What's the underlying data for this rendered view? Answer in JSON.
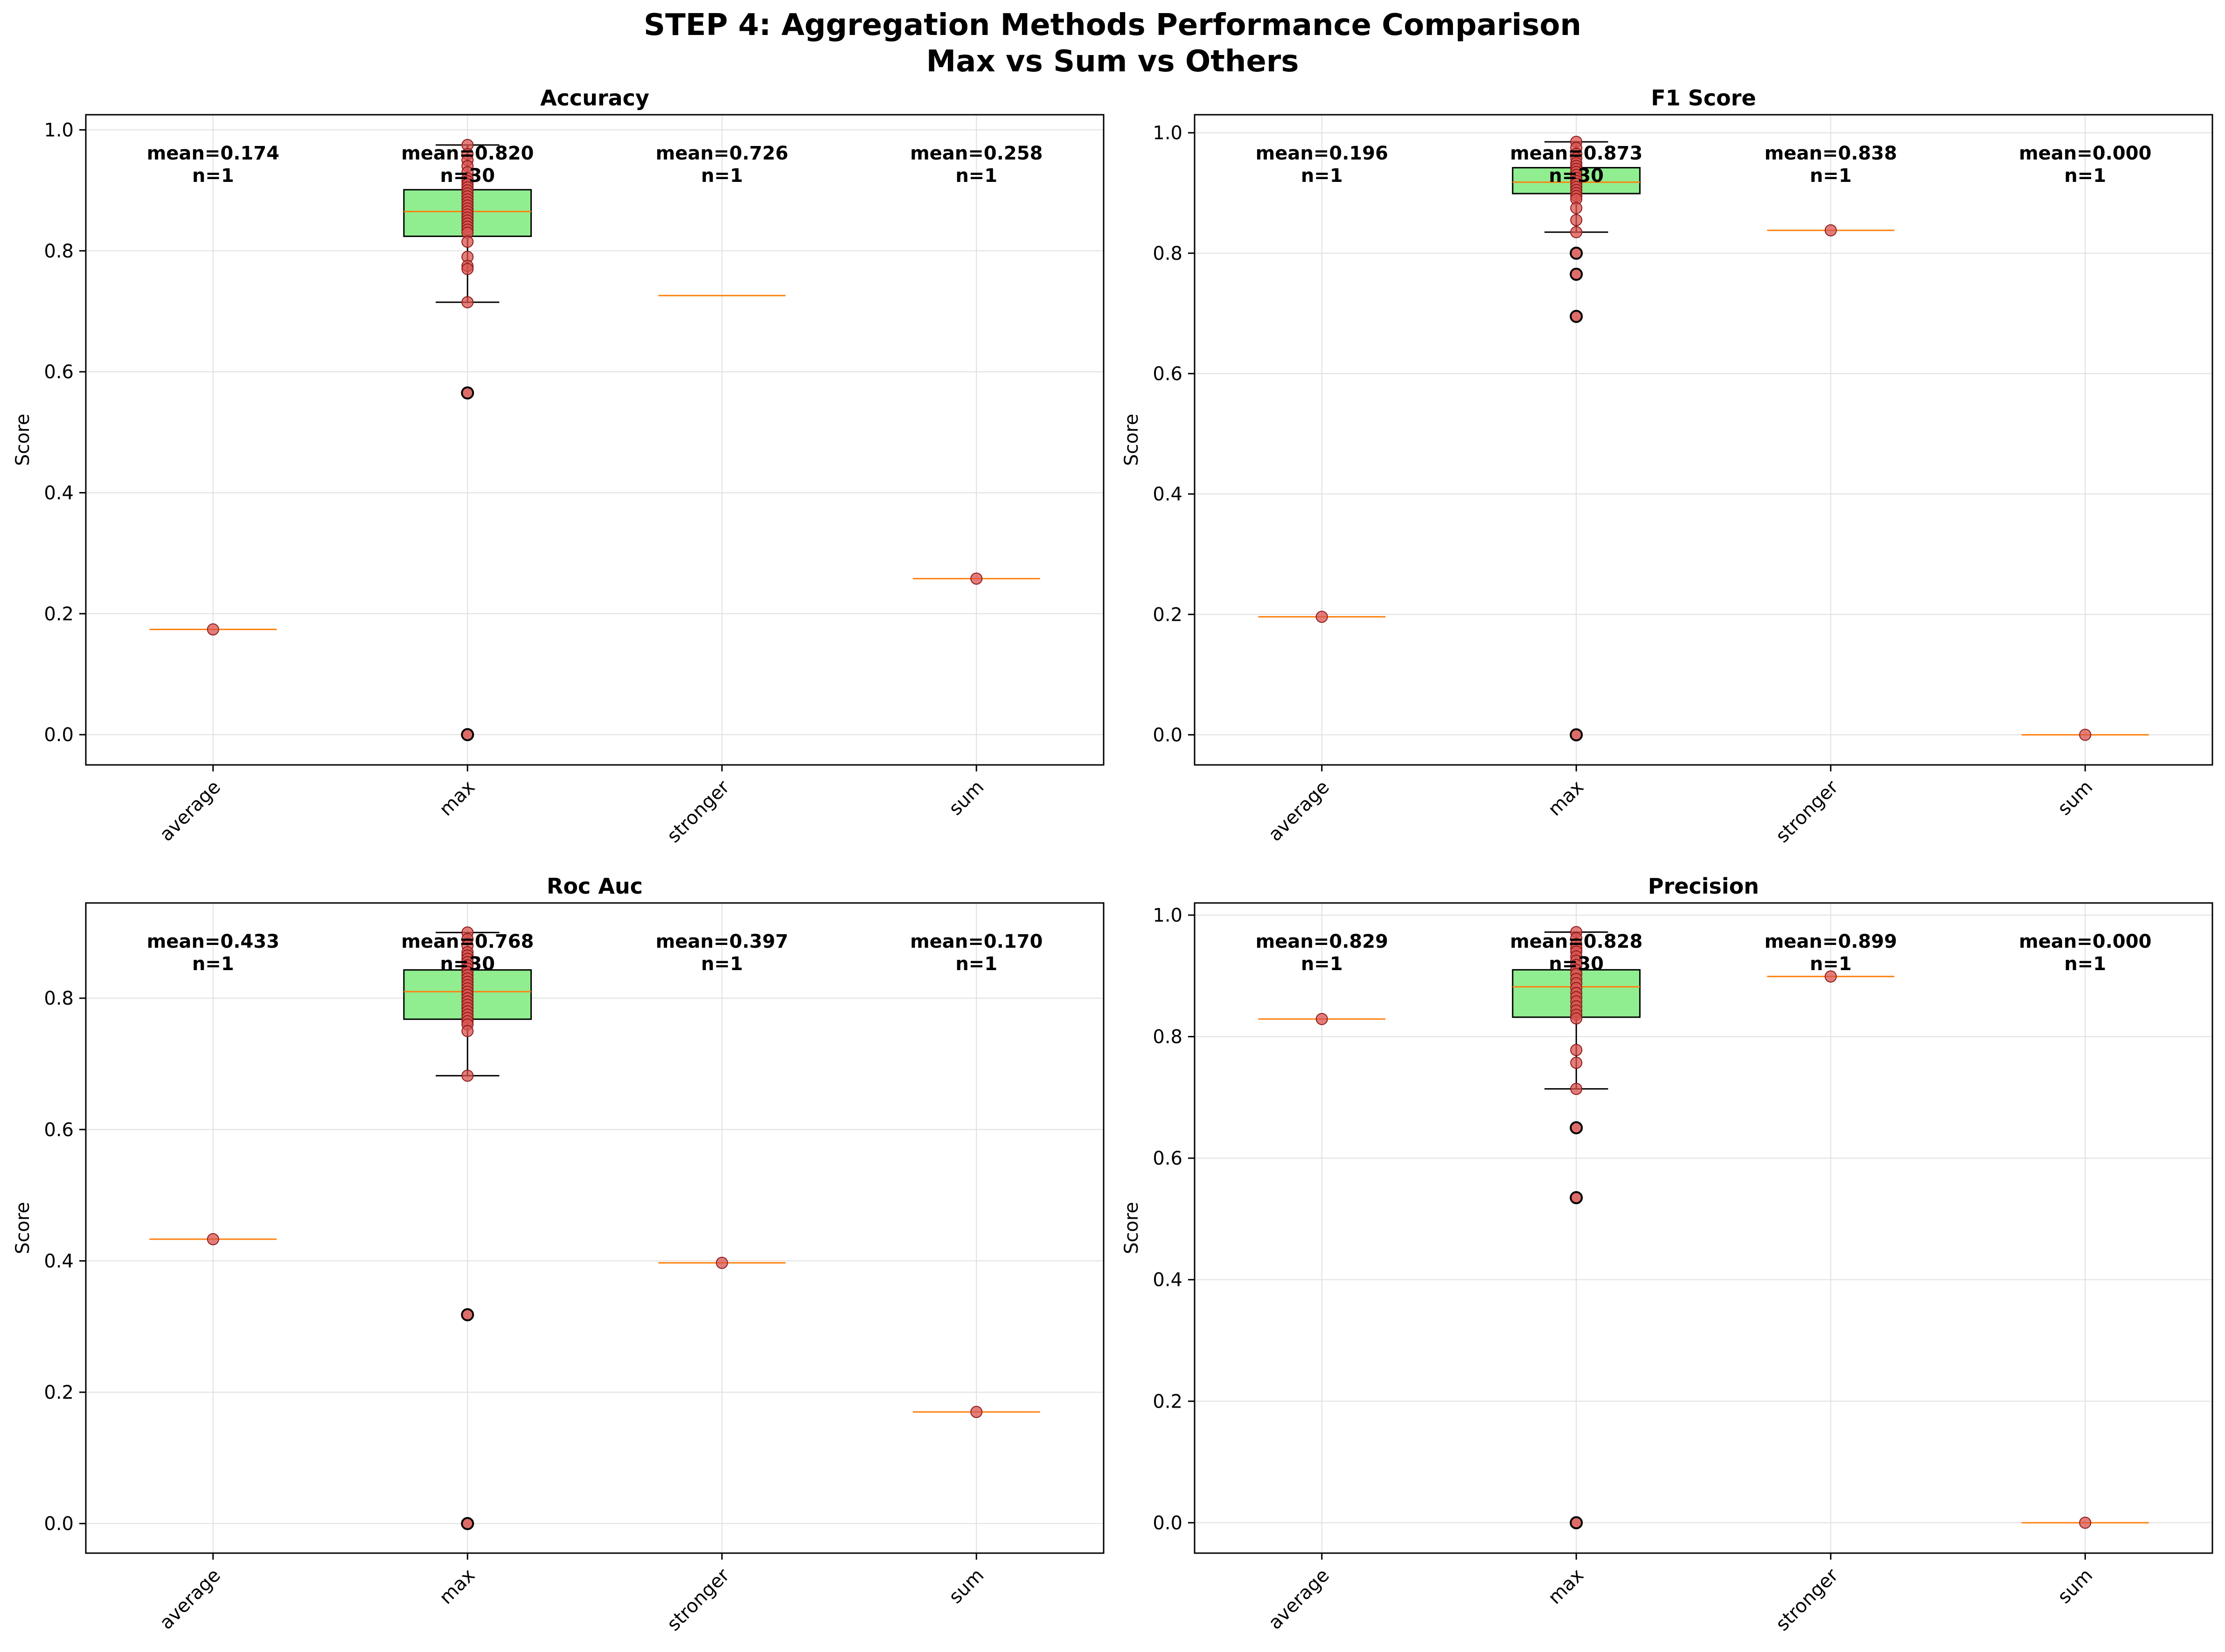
{
  "figure": {
    "title_line1": "STEP 4: Aggregation Methods Performance Comparison",
    "title_line2": "Max vs Sum vs Others"
  },
  "colors": {
    "box_fill": "#90ee90",
    "median": "#ff7f0e",
    "point_fill": "#d9534f",
    "point_dark": "#8b1a1a",
    "grid": "#e0e0e0"
  },
  "chart_data": [
    {
      "type": "box",
      "title": "Accuracy",
      "ylabel": "Score",
      "ylim": [
        -0.05,
        1.025
      ],
      "yticks": [
        "0.0",
        "0.2",
        "0.4",
        "0.6",
        "0.8",
        "1.0"
      ],
      "categories": [
        "average",
        "max",
        "stronger",
        "sum"
      ],
      "groups": [
        {
          "name": "average",
          "mean_label": "mean=0.174",
          "n_label": "n=1",
          "median": 0.174,
          "points": [
            0.174
          ]
        },
        {
          "name": "max",
          "mean_label": "mean=0.820",
          "n_label": "n=30",
          "q1": 0.824,
          "median": 0.865,
          "q3": 0.901,
          "whisker_low": 0.715,
          "whisker_high": 0.975,
          "points": [
            0.975,
            0.96,
            0.95,
            0.94,
            0.93,
            0.92,
            0.915,
            0.91,
            0.905,
            0.9,
            0.895,
            0.89,
            0.885,
            0.88,
            0.875,
            0.87,
            0.865,
            0.86,
            0.855,
            0.85,
            0.845,
            0.84,
            0.835,
            0.83,
            0.815,
            0.79,
            0.775,
            0.77,
            0.715
          ],
          "outliers": [
            0.565,
            0.0
          ]
        },
        {
          "name": "stronger",
          "mean_label": "mean=0.726",
          "n_label": "n=1",
          "median": 0.726,
          "points": []
        },
        {
          "name": "sum",
          "mean_label": "mean=0.258",
          "n_label": "n=1",
          "median": 0.258,
          "points": [
            0.258
          ]
        }
      ]
    },
    {
      "type": "box",
      "title": "F1 Score",
      "ylabel": "Score",
      "ylim": [
        -0.05,
        1.03
      ],
      "yticks": [
        "0.0",
        "0.2",
        "0.4",
        "0.6",
        "0.8",
        "1.0"
      ],
      "categories": [
        "average",
        "max",
        "stronger",
        "sum"
      ],
      "groups": [
        {
          "name": "average",
          "mean_label": "mean=0.196",
          "n_label": "n=1",
          "median": 0.196,
          "points": [
            0.196
          ]
        },
        {
          "name": "max",
          "mean_label": "mean=0.873",
          "n_label": "n=30",
          "q1": 0.899,
          "median": 0.918,
          "q3": 0.942,
          "whisker_low": 0.835,
          "whisker_high": 0.985,
          "points": [
            0.985,
            0.975,
            0.965,
            0.958,
            0.95,
            0.945,
            0.94,
            0.935,
            0.93,
            0.925,
            0.92,
            0.915,
            0.91,
            0.905,
            0.9,
            0.895,
            0.89,
            0.875,
            0.855,
            0.835
          ],
          "outliers": [
            0.8,
            0.765,
            0.695,
            0.0
          ]
        },
        {
          "name": "stronger",
          "mean_label": "mean=0.838",
          "n_label": "n=1",
          "median": 0.838,
          "points": [
            0.838
          ]
        },
        {
          "name": "sum",
          "mean_label": "mean=0.000",
          "n_label": "n=1",
          "median": 0.0,
          "points": [
            0.0
          ]
        }
      ]
    },
    {
      "type": "box",
      "title": "Roc Auc",
      "ylabel": "Score",
      "ylim": [
        -0.045,
        0.945
      ],
      "yticks": [
        "0.0",
        "0.2",
        "0.4",
        "0.6",
        "0.8"
      ],
      "categories": [
        "average",
        "max",
        "stronger",
        "sum"
      ],
      "groups": [
        {
          "name": "average",
          "mean_label": "mean=0.433",
          "n_label": "n=1",
          "median": 0.433,
          "points": [
            0.433
          ]
        },
        {
          "name": "max",
          "mean_label": "mean=0.768",
          "n_label": "n=30",
          "q1": 0.768,
          "median": 0.81,
          "q3": 0.843,
          "whisker_low": 0.682,
          "whisker_high": 0.9,
          "points": [
            0.9,
            0.89,
            0.88,
            0.87,
            0.865,
            0.86,
            0.855,
            0.85,
            0.845,
            0.84,
            0.835,
            0.83,
            0.825,
            0.82,
            0.815,
            0.81,
            0.805,
            0.8,
            0.795,
            0.79,
            0.785,
            0.78,
            0.775,
            0.77,
            0.765,
            0.76,
            0.75,
            0.682
          ],
          "outliers": [
            0.318,
            0.0
          ]
        },
        {
          "name": "stronger",
          "mean_label": "mean=0.397",
          "n_label": "n=1",
          "median": 0.397,
          "points": [
            0.397
          ]
        },
        {
          "name": "sum",
          "mean_label": "mean=0.170",
          "n_label": "n=1",
          "median": 0.17,
          "points": [
            0.17
          ]
        }
      ]
    },
    {
      "type": "box",
      "title": "Precision",
      "ylabel": "Score",
      "ylim": [
        -0.05,
        1.02
      ],
      "yticks": [
        "0.0",
        "0.2",
        "0.4",
        "0.6",
        "0.8",
        "1.0"
      ],
      "categories": [
        "average",
        "max",
        "stronger",
        "sum"
      ],
      "groups": [
        {
          "name": "average",
          "mean_label": "mean=0.829",
          "n_label": "n=1",
          "median": 0.829,
          "points": [
            0.829
          ]
        },
        {
          "name": "max",
          "mean_label": "mean=0.828",
          "n_label": "n=30",
          "q1": 0.832,
          "median": 0.882,
          "q3": 0.91,
          "whisker_low": 0.714,
          "whisker_high": 0.972,
          "points": [
            0.972,
            0.962,
            0.952,
            0.945,
            0.94,
            0.932,
            0.925,
            0.918,
            0.91,
            0.903,
            0.895,
            0.888,
            0.88,
            0.872,
            0.865,
            0.858,
            0.85,
            0.843,
            0.836,
            0.83,
            0.778,
            0.757,
            0.714
          ],
          "outliers": [
            0.65,
            0.535,
            0.0
          ]
        },
        {
          "name": "stronger",
          "mean_label": "mean=0.899",
          "n_label": "n=1",
          "median": 0.899,
          "points": [
            0.899
          ]
        },
        {
          "name": "sum",
          "mean_label": "mean=0.000",
          "n_label": "n=1",
          "median": 0.0,
          "points": [
            0.0
          ]
        }
      ]
    }
  ]
}
